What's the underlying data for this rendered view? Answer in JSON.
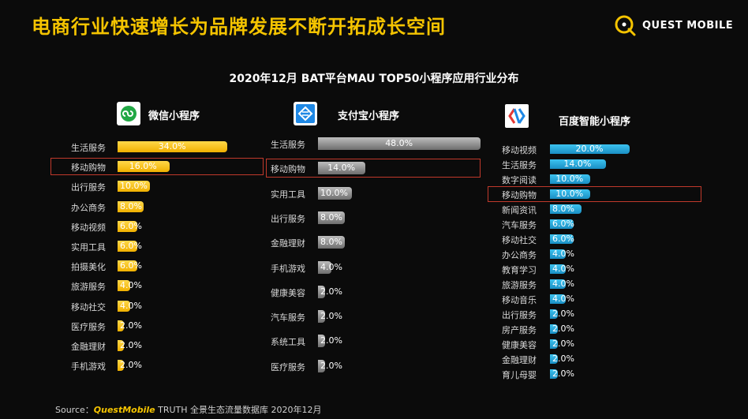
{
  "headline": "电商行业快速增长为品牌发展不断开拓成长空间",
  "logo": {
    "text": "QUEST MOBILE",
    "icon": "questmobile-logo-icon"
  },
  "source": {
    "prefix": "Source：",
    "brand": "QuestMobile",
    "suffix": " TRUTH 全景生态流量数据库 2020年12月"
  },
  "colors": {
    "wechat": "#f7c300",
    "alipay": "#9a9a9a",
    "baidu": "#1ea6dc",
    "highlight": "#c0392b",
    "headline": "#f5c400"
  },
  "chart_data": {
    "type": "bar",
    "orientation": "horizontal",
    "title": "2020年12月 BAT平台MAU TOP50小程序应用行业分布",
    "xlim": [
      0,
      50
    ],
    "grid": false,
    "panels": [
      {
        "name": "微信小程序",
        "icon": "wechat-miniprogram-icon",
        "categories": [
          "生活服务",
          "移动购物",
          "出行服务",
          "办公商务",
          "移动视频",
          "实用工具",
          "拍摄美化",
          "旅游服务",
          "移动社交",
          "医疗服务",
          "金融理财",
          "手机游戏"
        ],
        "values": [
          34.0,
          16.0,
          10.0,
          8.0,
          6.0,
          6.0,
          6.0,
          4.0,
          4.0,
          2.0,
          2.0,
          2.0
        ],
        "labels": [
          "34.0%",
          "16.0%",
          "10.0%",
          "8.0%",
          "6.0%",
          "6.0%",
          "6.0%",
          "4.0%",
          "4.0%",
          "2.0%",
          "2.0%",
          "2.0%"
        ],
        "highlight": "移动购物"
      },
      {
        "name": "支付宝小程序",
        "icon": "alipay-miniprogram-icon",
        "categories": [
          "生活服务",
          "移动购物",
          "实用工具",
          "出行服务",
          "金融理财",
          "手机游戏",
          "健康美容",
          "汽车服务",
          "系统工具",
          "医疗服务"
        ],
        "values": [
          48.0,
          14.0,
          10.0,
          8.0,
          8.0,
          4.0,
          2.0,
          2.0,
          2.0,
          2.0
        ],
        "labels": [
          "48.0%",
          "14.0%",
          "10.0%",
          "8.0%",
          "8.0%",
          "4.0%",
          "2.0%",
          "2.0%",
          "2.0%",
          "2.0%"
        ],
        "highlight": "移动购物"
      },
      {
        "name": "百度智能小程序",
        "icon": "baidu-smart-miniprogram-icon",
        "categories": [
          "移动视频",
          "生活服务",
          "数字阅读",
          "移动购物",
          "新闻资讯",
          "汽车服务",
          "移动社交",
          "办公商务",
          "教育学习",
          "旅游服务",
          "移动音乐",
          "出行服务",
          "房产服务",
          "健康美容",
          "金融理财",
          "育儿母婴"
        ],
        "values": [
          20.0,
          14.0,
          10.0,
          10.0,
          8.0,
          6.0,
          6.0,
          4.0,
          4.0,
          4.0,
          4.0,
          2.0,
          2.0,
          2.0,
          2.0,
          2.0
        ],
        "labels": [
          "20.0%",
          "14.0%",
          "10.0%",
          "10.0%",
          "8.0%",
          "6.0%",
          "6.0%",
          "4.0%",
          "4.0%",
          "4.0%",
          "4.0%",
          "2.0%",
          "2.0%",
          "2.0%",
          "2.0%",
          "2.0%"
        ],
        "highlight": "移动购物"
      }
    ]
  }
}
